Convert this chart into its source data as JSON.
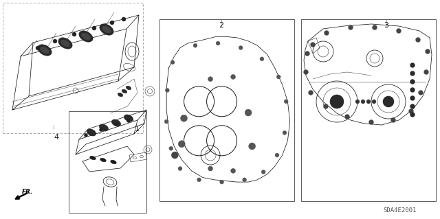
{
  "background_color": "#ffffff",
  "figure_width": 6.4,
  "figure_height": 3.19,
  "dpi": 100,
  "diagram_code": "SDA4E2001",
  "line_color": "#1a1a1a",
  "gray_color": "#555555",
  "label_fontsize": 8,
  "code_fontsize": 6.5,
  "lw_main": 0.55,
  "lw_thin": 0.35,
  "lw_thick": 0.9
}
